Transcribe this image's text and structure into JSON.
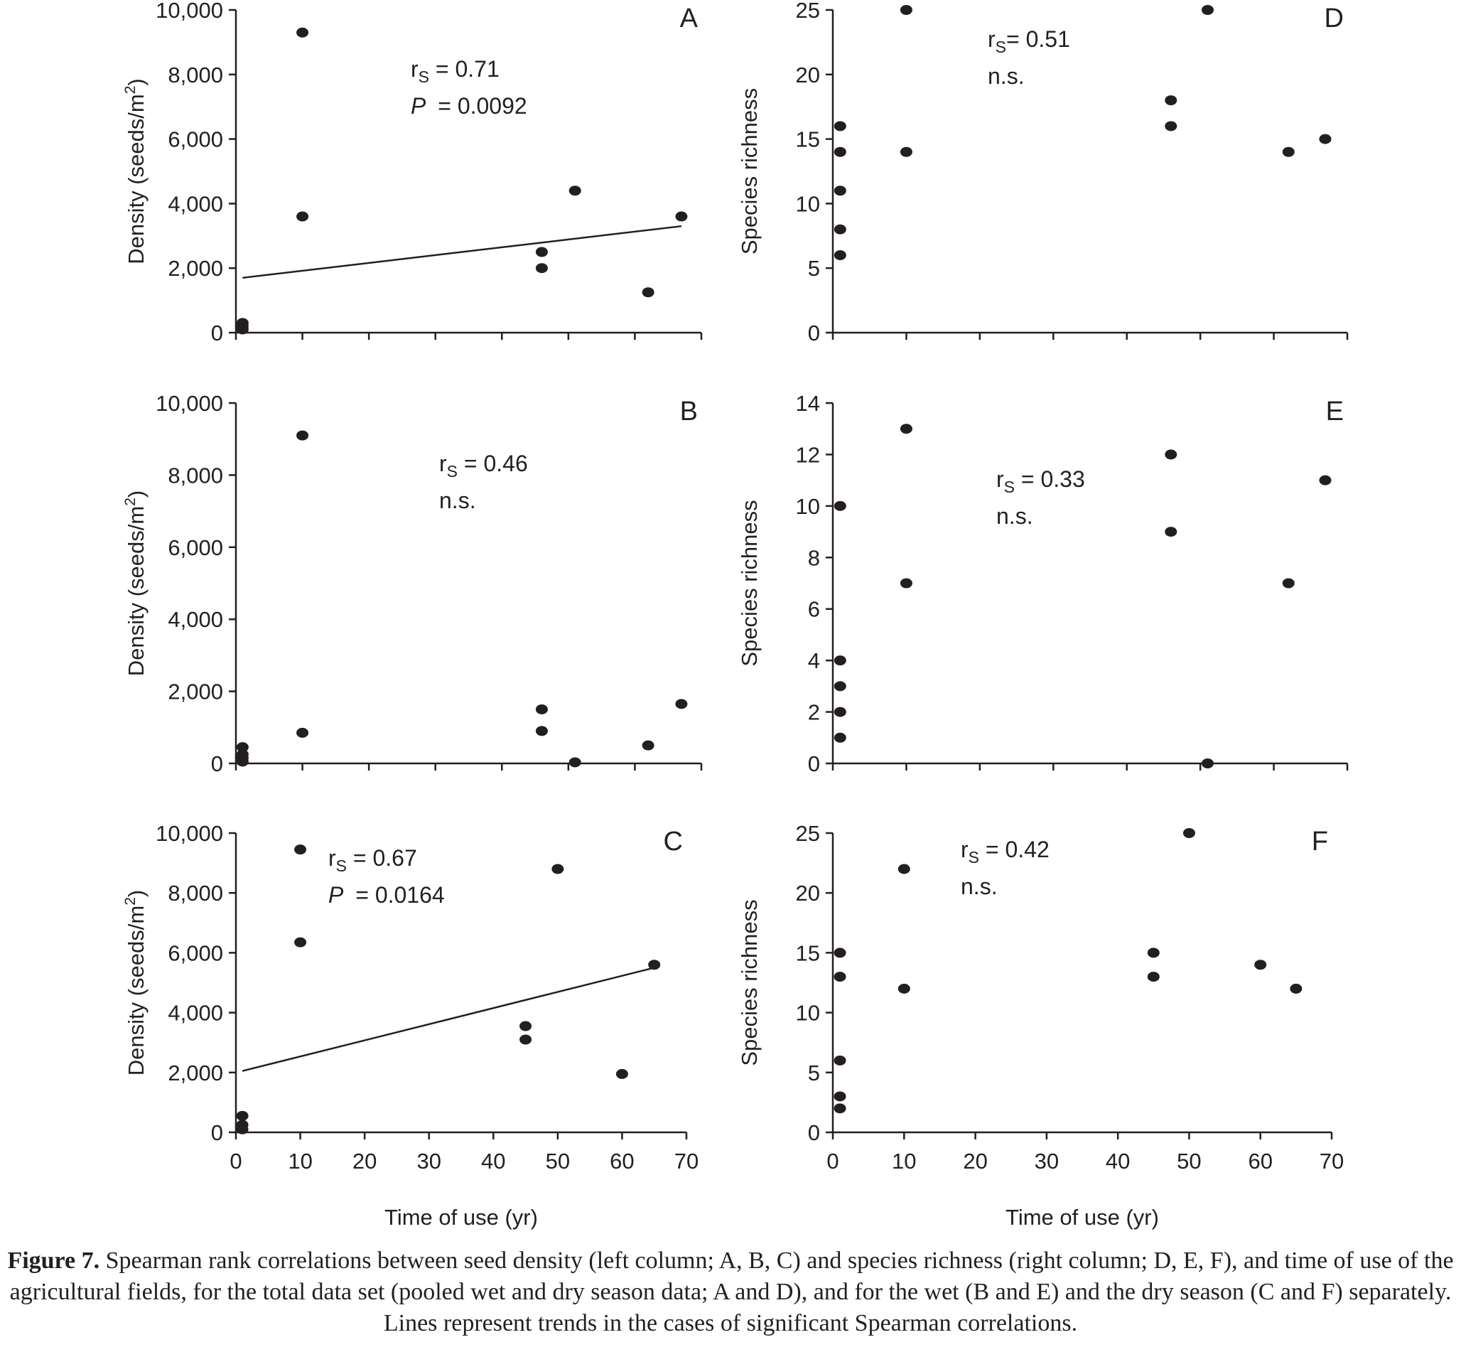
{
  "chart_data": [
    {
      "id": "A",
      "type": "scatter",
      "panel_label": "A",
      "ylabel": "Density (seeds/m",
      "ylabel_sup": "2",
      "ylabel_end": ")",
      "ylim": [
        0,
        10000
      ],
      "yticks": [
        "0",
        "2,000",
        "4,000",
        "6,000",
        "8,000",
        "10,000"
      ],
      "xlim": [
        0,
        70
      ],
      "xticks": [],
      "xlabel": "",
      "stat_lines": [
        {
          "r": "r",
          "sub": "S",
          "val": " = 0.71"
        },
        {
          "p": "P",
          "val": " = 0.0092"
        }
      ],
      "points": [
        [
          1,
          100
        ],
        [
          1,
          200
        ],
        [
          1,
          300
        ],
        [
          10,
          9300
        ],
        [
          10,
          3600
        ],
        [
          46,
          2500
        ],
        [
          46,
          2000
        ],
        [
          51,
          4400
        ],
        [
          62,
          1250
        ],
        [
          67,
          3600
        ]
      ],
      "trend": {
        "x": [
          1,
          67
        ],
        "y": [
          1700,
          3300
        ]
      }
    },
    {
      "id": "B",
      "type": "scatter",
      "panel_label": "B",
      "ylabel": "Density (seeds/m",
      "ylabel_sup": "2",
      "ylabel_end": ")",
      "ylim": [
        0,
        10000
      ],
      "yticks": [
        "0",
        "2,000",
        "4,000",
        "6,000",
        "8,000",
        "10,000"
      ],
      "xlim": [
        0,
        70
      ],
      "xticks": [],
      "xlabel": "",
      "stat_lines": [
        {
          "r": "r",
          "sub": "S",
          "val": " = 0.46"
        },
        {
          "text": "n.s."
        }
      ],
      "points": [
        [
          1,
          50
        ],
        [
          1,
          150
        ],
        [
          1,
          250
        ],
        [
          1,
          450
        ],
        [
          10,
          9100
        ],
        [
          10,
          850
        ],
        [
          46,
          1500
        ],
        [
          46,
          900
        ],
        [
          51,
          30
        ],
        [
          62,
          500
        ],
        [
          67,
          1650
        ]
      ],
      "trend": null
    },
    {
      "id": "C",
      "type": "scatter",
      "panel_label": "C",
      "ylabel": "Density (seeds/m",
      "ylabel_sup": "2",
      "ylabel_end": ")",
      "ylim": [
        0,
        10000
      ],
      "yticks": [
        "0",
        "2,000",
        "4,000",
        "6,000",
        "8,000",
        "10,000"
      ],
      "xlim": [
        0,
        70
      ],
      "xticks": [
        "0",
        "10",
        "20",
        "30",
        "40",
        "50",
        "60",
        "70"
      ],
      "xlabel": "Time of use (yr)",
      "stat_lines": [
        {
          "r": "r",
          "sub": "S",
          "val": " = 0.67"
        },
        {
          "p": "P",
          "val": " = 0.0164"
        }
      ],
      "points": [
        [
          1,
          100
        ],
        [
          1,
          250
        ],
        [
          1,
          550
        ],
        [
          10,
          9450
        ],
        [
          10,
          6350
        ],
        [
          45,
          3550
        ],
        [
          45,
          3100
        ],
        [
          50,
          8800
        ],
        [
          60,
          1950
        ],
        [
          65,
          5600
        ]
      ],
      "trend": {
        "x": [
          1,
          65
        ],
        "y": [
          2050,
          5500
        ]
      }
    },
    {
      "id": "D",
      "type": "scatter",
      "panel_label": "D",
      "ylabel": "Species richness",
      "ylim": [
        0,
        25
      ],
      "yticks": [
        "0",
        "5",
        "10",
        "15",
        "20",
        "25"
      ],
      "xlim": [
        0,
        70
      ],
      "xticks": [],
      "xlabel": "",
      "stat_lines": [
        {
          "r": "r",
          "sub": "S",
          "val": "= 0.51"
        },
        {
          "text": "n.s."
        }
      ],
      "points": [
        [
          1,
          6
        ],
        [
          1,
          8
        ],
        [
          1,
          11
        ],
        [
          1,
          14
        ],
        [
          1,
          16
        ],
        [
          10,
          25
        ],
        [
          10,
          14
        ],
        [
          46,
          18
        ],
        [
          46,
          16
        ],
        [
          51,
          25
        ],
        [
          62,
          14
        ],
        [
          67,
          15
        ]
      ],
      "trend": null
    },
    {
      "id": "E",
      "type": "scatter",
      "panel_label": "E",
      "ylabel": "Species richness",
      "ylim": [
        0,
        14
      ],
      "yticks": [
        "0",
        "2",
        "4",
        "6",
        "8",
        "10",
        "12",
        "14"
      ],
      "xlim": [
        0,
        70
      ],
      "xticks": [],
      "xlabel": "",
      "stat_lines": [
        {
          "r": "r",
          "sub": "S",
          "val": " = 0.33"
        },
        {
          "text": "n.s."
        }
      ],
      "points": [
        [
          1,
          1
        ],
        [
          1,
          2
        ],
        [
          1,
          3
        ],
        [
          1,
          4
        ],
        [
          1,
          10
        ],
        [
          10,
          13
        ],
        [
          10,
          7
        ],
        [
          46,
          12
        ],
        [
          46,
          9
        ],
        [
          51,
          0
        ],
        [
          62,
          7
        ],
        [
          67,
          11
        ]
      ],
      "trend": null
    },
    {
      "id": "F",
      "type": "scatter",
      "panel_label": "F",
      "ylabel": "Species richness",
      "ylim": [
        0,
        25
      ],
      "yticks": [
        "0",
        "5",
        "10",
        "15",
        "20",
        "25"
      ],
      "xlim": [
        0,
        70
      ],
      "xticks": [
        "0",
        "10",
        "20",
        "30",
        "40",
        "50",
        "60",
        "70"
      ],
      "xlabel": "Time of use (yr)",
      "stat_lines": [
        {
          "r": "r",
          "sub": "S",
          "val": " = 0.42"
        },
        {
          "text": "n.s."
        }
      ],
      "points": [
        [
          1,
          2
        ],
        [
          1,
          3
        ],
        [
          1,
          6
        ],
        [
          1,
          13
        ],
        [
          1,
          15
        ],
        [
          10,
          22
        ],
        [
          10,
          12
        ],
        [
          45,
          15
        ],
        [
          45,
          13
        ],
        [
          50,
          25
        ],
        [
          60,
          14
        ],
        [
          65,
          12
        ]
      ],
      "trend": null
    }
  ],
  "caption": {
    "label": "Figure 7.",
    "text": " Spearman rank correlations between seed density (left column; A, B, C) and species richness (right column; D, E, F), and time of use of the agricultural fields, for the total data set (pooled wet and dry season data; A and D), and for the wet (B and E) and the dry season (C and F) separately. Lines represent trends in the cases of significant Spearman correlations."
  }
}
